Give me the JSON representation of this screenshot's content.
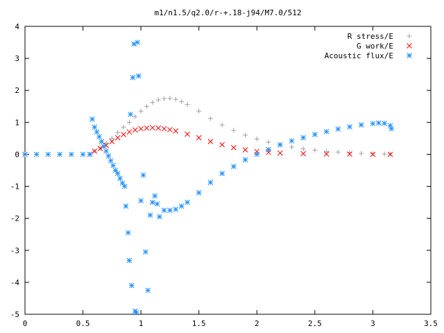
{
  "chart_data": {
    "type": "scatter",
    "title": "m1/n1.5/q2.0/r-+.18-j94/M7.0/512",
    "xlabel": "",
    "ylabel": "",
    "xlim": [
      0,
      3.5
    ],
    "ylim": [
      -5,
      4
    ],
    "grid": false,
    "legend_position": "top-right",
    "x_ticks": [
      0,
      0.5,
      1,
      1.5,
      2,
      2.5,
      3,
      3.5
    ],
    "x_tick_labels": [
      "0",
      "0.5",
      "1",
      "1.5",
      "2",
      "2.5",
      "3",
      "3.5"
    ],
    "y_ticks": [
      -5,
      -4,
      -3,
      -2,
      -1,
      0,
      1,
      2,
      3,
      4
    ],
    "y_tick_labels": [
      "-5",
      "-4",
      "-3",
      "-2",
      "-1",
      "0",
      "1",
      "2",
      "3",
      "4"
    ],
    "series": [
      {
        "name": "R stress/E",
        "color": "#a0a0a0",
        "marker": "plus",
        "x": [
          0,
          0.56,
          0.6,
          0.65,
          0.7,
          0.75,
          0.8,
          0.85,
          0.9,
          0.95,
          1.0,
          1.05,
          1.1,
          1.15,
          1.2,
          1.25,
          1.3,
          1.35,
          1.4,
          1.5,
          1.6,
          1.7,
          1.8,
          1.9,
          2.0,
          2.1,
          2.2,
          2.3,
          2.4,
          2.5,
          2.6,
          2.7,
          2.8,
          2.9,
          3.0,
          3.1,
          3.15
        ],
        "y": [
          0,
          0,
          0.1,
          0.2,
          0.35,
          0.5,
          0.68,
          0.85,
          1.0,
          1.18,
          1.35,
          1.5,
          1.62,
          1.7,
          1.74,
          1.75,
          1.72,
          1.65,
          1.56,
          1.35,
          1.12,
          0.92,
          0.75,
          0.6,
          0.48,
          0.38,
          0.3,
          0.23,
          0.17,
          0.13,
          0.09,
          0.07,
          0.05,
          0.03,
          0.02,
          0.01,
          0.01
        ]
      },
      {
        "name": "G work/E",
        "color": "#ff0000",
        "marker": "cross",
        "x": [
          0,
          0.56,
          0.6,
          0.65,
          0.7,
          0.75,
          0.8,
          0.85,
          0.9,
          0.95,
          1.0,
          1.05,
          1.1,
          1.15,
          1.2,
          1.25,
          1.3,
          1.4,
          1.5,
          1.6,
          1.7,
          1.8,
          1.9,
          2.0,
          2.1,
          2.2,
          2.4,
          2.6,
          2.8,
          3.0,
          3.15
        ],
        "y": [
          0,
          0,
          0.1,
          0.18,
          0.28,
          0.4,
          0.52,
          0.62,
          0.7,
          0.76,
          0.8,
          0.82,
          0.83,
          0.82,
          0.8,
          0.77,
          0.73,
          0.63,
          0.52,
          0.4,
          0.3,
          0.21,
          0.14,
          0.09,
          0.06,
          0.04,
          0.02,
          0.01,
          0.01,
          0,
          0
        ]
      },
      {
        "name": "Acoustic flux/E",
        "color": "#1e90ff",
        "marker": "star",
        "x": [
          0,
          0.1,
          0.2,
          0.3,
          0.4,
          0.5,
          0.56,
          0.58,
          0.6,
          0.62,
          0.64,
          0.66,
          0.68,
          0.7,
          0.72,
          0.74,
          0.76,
          0.78,
          0.8,
          0.82,
          0.84,
          0.86,
          0.87,
          0.89,
          0.9,
          0.91,
          0.92,
          0.93,
          0.94,
          0.95,
          0.96,
          0.97,
          0.98,
          1.0,
          1.02,
          1.04,
          1.06,
          1.08,
          1.1,
          1.12,
          1.14,
          1.16,
          1.2,
          1.25,
          1.3,
          1.35,
          1.4,
          1.5,
          1.6,
          1.7,
          1.8,
          1.9,
          2.0,
          2.1,
          2.2,
          2.3,
          2.4,
          2.5,
          2.6,
          2.7,
          2.8,
          2.9,
          3.0,
          3.05,
          3.1,
          3.15,
          3.16
        ],
        "y": [
          0,
          0,
          0,
          0,
          0,
          0,
          0,
          1.1,
          0.85,
          0.7,
          0.55,
          0.4,
          0.25,
          0.1,
          -0.05,
          -0.2,
          -0.35,
          -0.5,
          -0.6,
          -0.75,
          -0.9,
          -1.0,
          -1.62,
          -2.45,
          -3.32,
          1.25,
          -4.1,
          2.4,
          3.45,
          -4.9,
          -4.95,
          3.5,
          2.45,
          -1.45,
          -0.65,
          -3.05,
          -4.25,
          -1.9,
          -1.5,
          -1.3,
          -1.55,
          -1.95,
          -1.75,
          -1.75,
          -1.72,
          -1.62,
          -1.5,
          -1.2,
          -0.88,
          -0.6,
          -0.38,
          -0.17,
          0.0,
          0.15,
          0.3,
          0.42,
          0.52,
          0.62,
          0.71,
          0.79,
          0.86,
          0.92,
          0.96,
          0.98,
          0.97,
          0.9,
          0.8
        ]
      }
    ]
  }
}
